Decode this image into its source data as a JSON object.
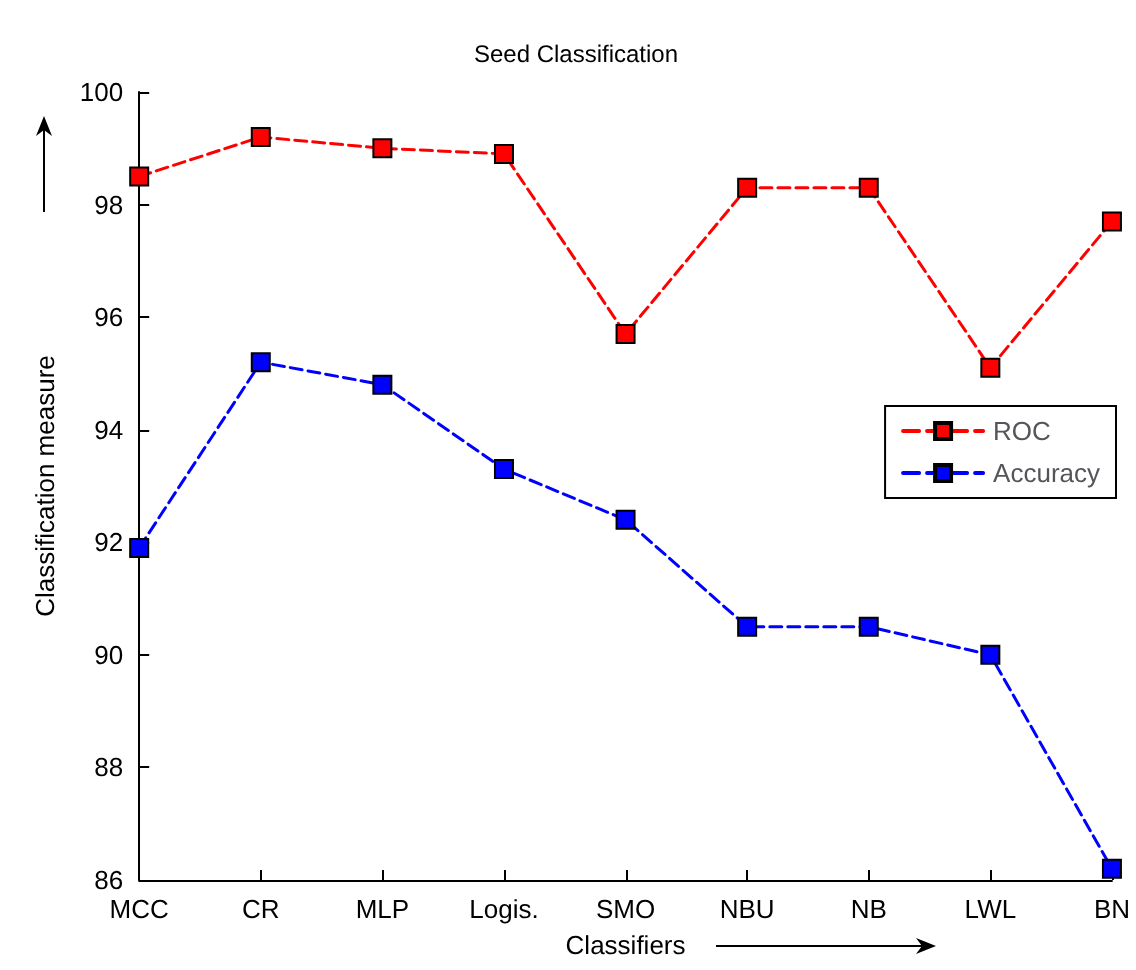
{
  "chart_data": {
    "type": "line",
    "title": "Seed Classification",
    "xlabel": "Classifiers",
    "ylabel": "Classification measure",
    "categories": [
      "MCC",
      "CR",
      "MLP",
      "Logis.",
      "SMO",
      "NBU",
      "NB",
      "LWL",
      "BN"
    ],
    "series": [
      {
        "name": "ROC",
        "color": "#ff0000",
        "values": [
          98.5,
          99.2,
          99.0,
          98.9,
          95.7,
          98.3,
          98.3,
          95.1,
          97.7
        ]
      },
      {
        "name": "Accuracy",
        "color": "#0000ff",
        "values": [
          91.9,
          95.2,
          94.8,
          93.3,
          92.4,
          90.5,
          90.5,
          90.0,
          86.2
        ]
      }
    ],
    "ylim": [
      86,
      100
    ],
    "yticks": [
      86,
      88,
      90,
      92,
      94,
      96,
      98,
      100
    ],
    "grid": false,
    "legend": "right",
    "marker": "square",
    "line_style": "dashed"
  }
}
